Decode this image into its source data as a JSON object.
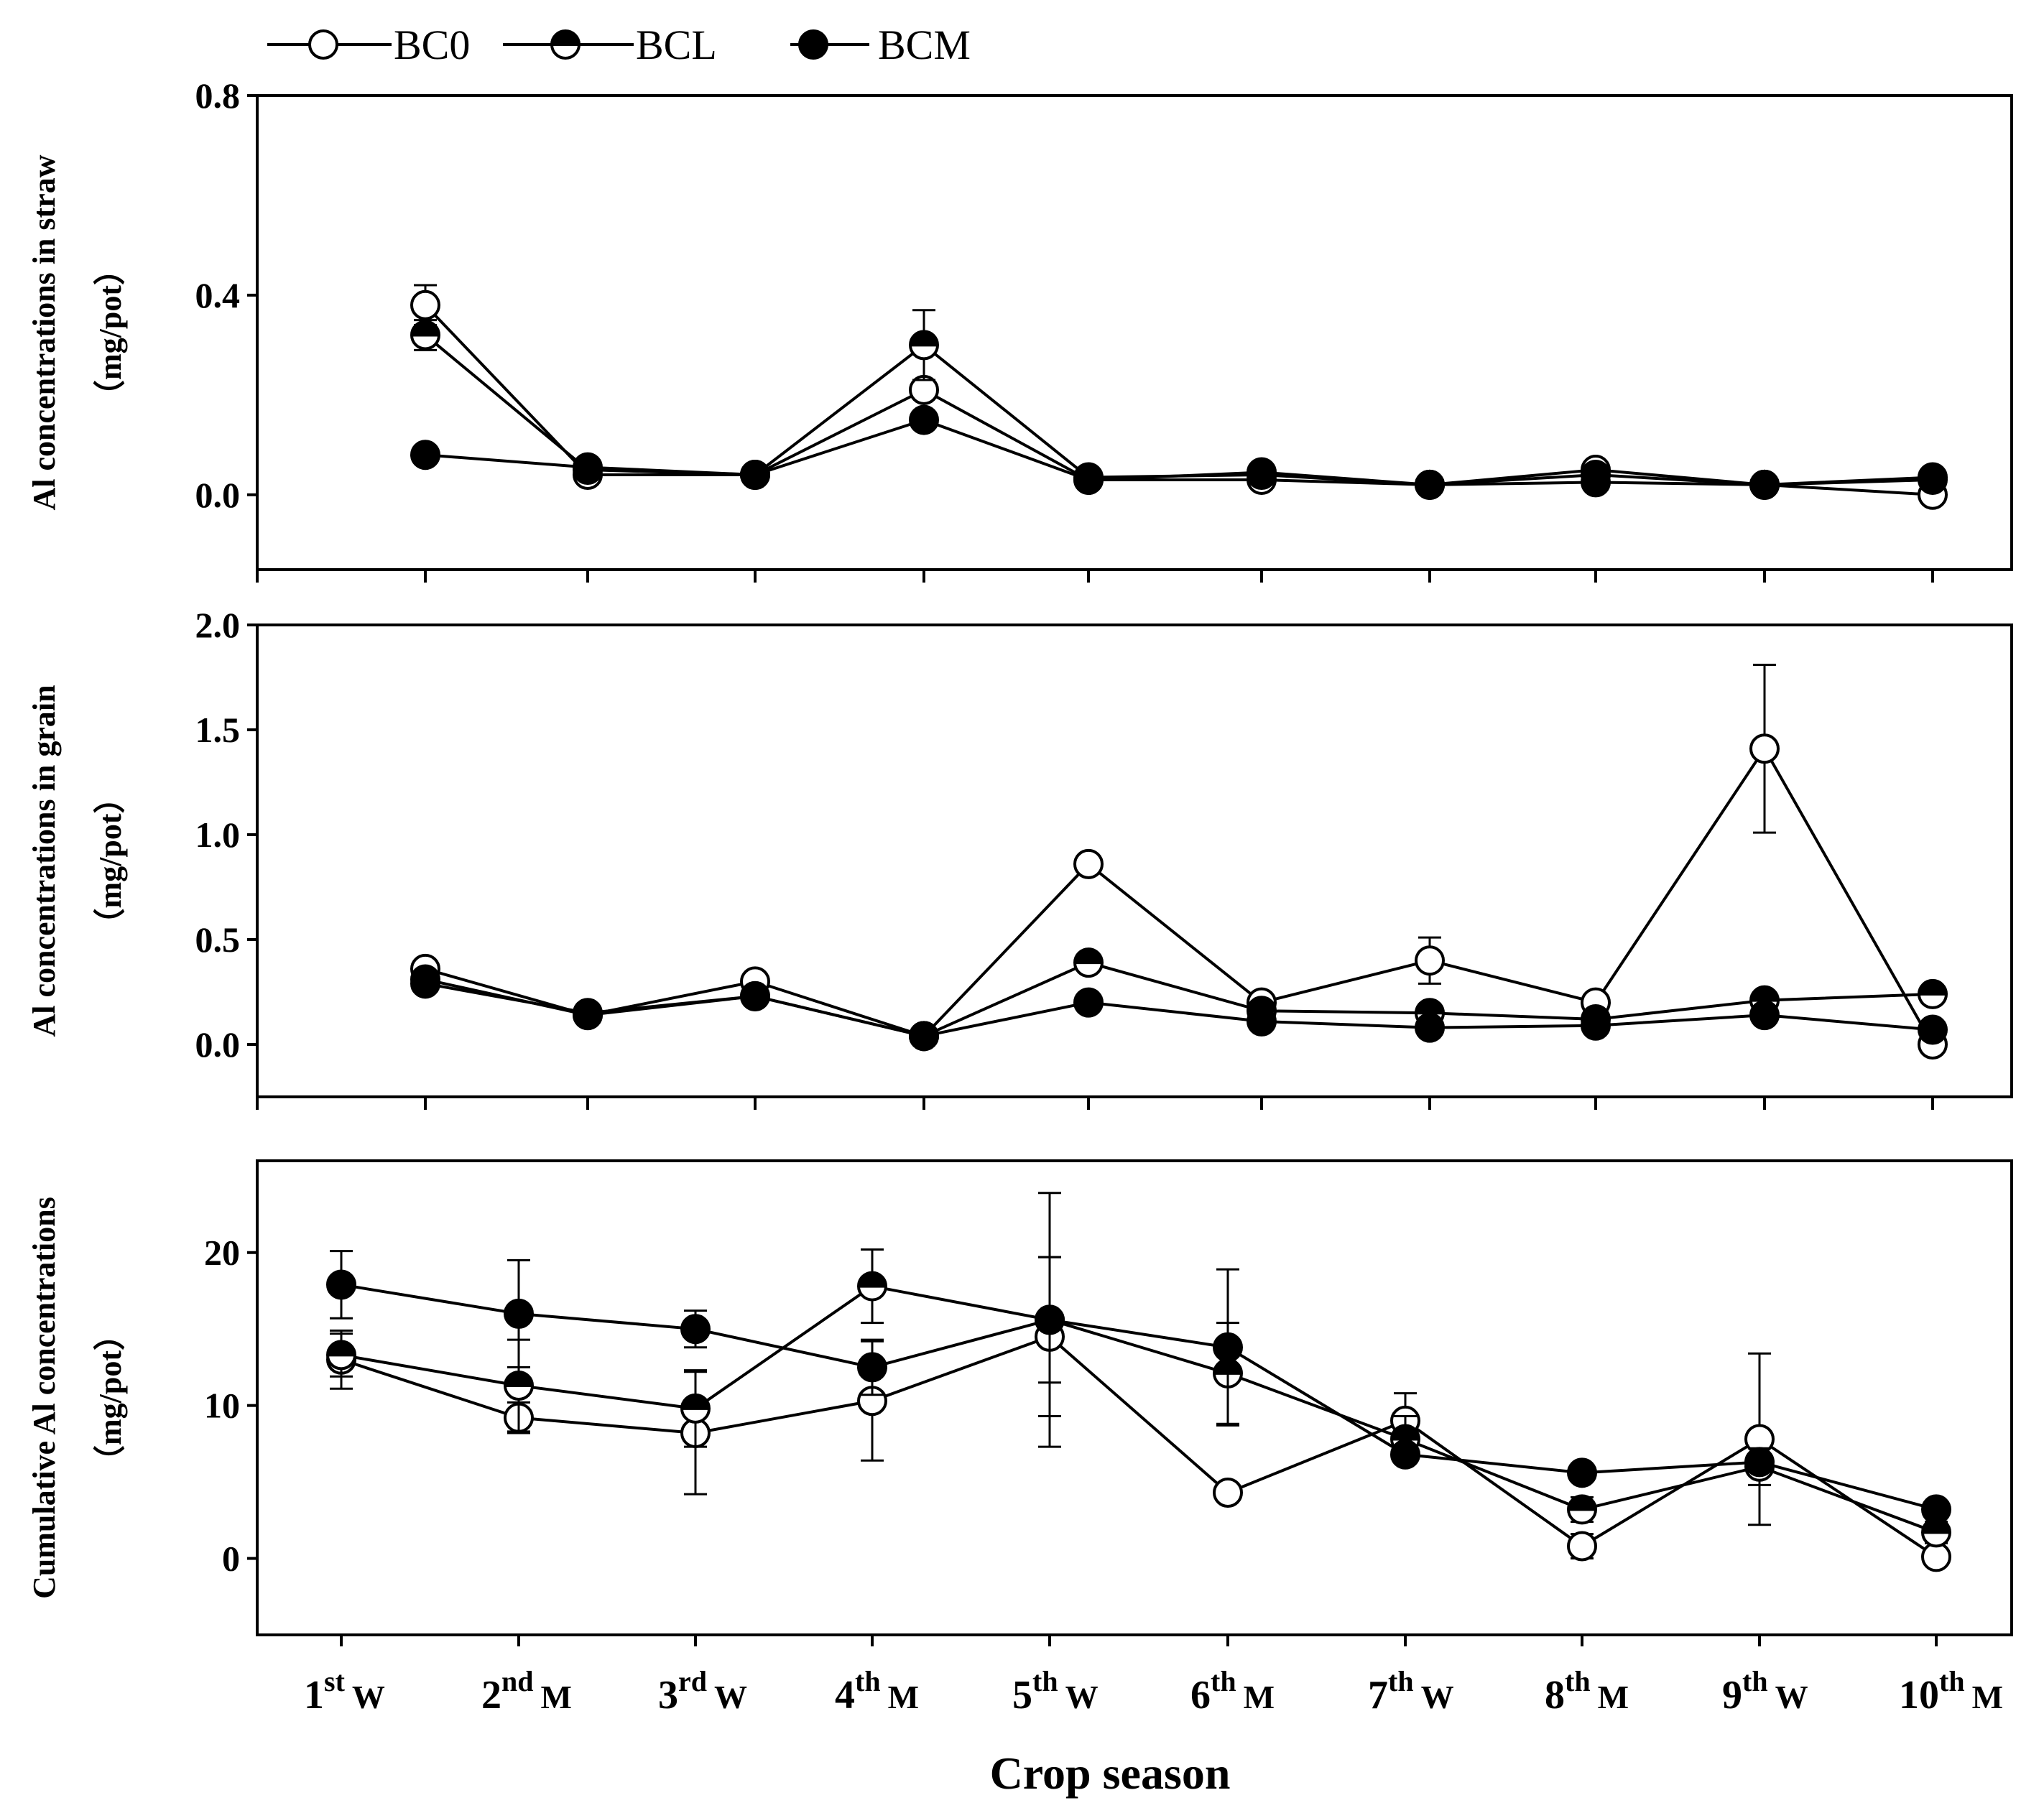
{
  "chart_data": {
    "type": "line",
    "categories": [
      {
        "num": "1",
        "sup": "st",
        "suffix": "W"
      },
      {
        "num": "2",
        "sup": "nd",
        "suffix": "M"
      },
      {
        "num": "3",
        "sup": "rd",
        "suffix": "W"
      },
      {
        "num": "4",
        "sup": "th",
        "suffix": "M"
      },
      {
        "num": "5",
        "sup": "th",
        "suffix": "W"
      },
      {
        "num": "6",
        "sup": "th",
        "suffix": "M"
      },
      {
        "num": "7",
        "sup": "th",
        "suffix": "W"
      },
      {
        "num": "8",
        "sup": "th",
        "suffix": "M"
      },
      {
        "num": "9",
        "sup": "th",
        "suffix": "W"
      },
      {
        "num": "10",
        "sup": "th",
        "suffix": "M"
      }
    ],
    "xlabel": "Crop season",
    "legend": {
      "position": "top-left",
      "entries": [
        {
          "name": "BC0",
          "marker": "open"
        },
        {
          "name": "BCL",
          "marker": "half"
        },
        {
          "name": "BCM",
          "marker": "filled"
        }
      ]
    },
    "panels": [
      {
        "id": "straw",
        "ylabel_line1": "Al concentrations in straw",
        "ylabel_line2": "（mg/pot）",
        "ylim": [
          -0.15,
          0.8
        ],
        "yticks": [
          0.0,
          0.4,
          0.8
        ],
        "ytick_labels": [
          "0.0",
          "0.4",
          "0.8"
        ],
        "series": [
          {
            "name": "BC0",
            "values": [
              0.38,
              0.04,
              0.04,
              0.21,
              0.03,
              0.03,
              0.02,
              0.05,
              0.02,
              0.0
            ],
            "errors": [
              0.04,
              0.0,
              0.0,
              0.0,
              0.0,
              0.0,
              0.0,
              0.0,
              0.0,
              0.0
            ]
          },
          {
            "name": "BCL",
            "values": [
              0.32,
              0.05,
              0.04,
              0.3,
              0.035,
              0.04,
              0.02,
              0.04,
              0.02,
              0.03
            ],
            "errors": [
              0.03,
              0.0,
              0.0,
              0.07,
              0.0,
              0.0,
              0.0,
              0.0,
              0.0,
              0.0
            ]
          },
          {
            "name": "BCM",
            "values": [
              0.08,
              0.055,
              0.04,
              0.15,
              0.03,
              0.045,
              0.02,
              0.025,
              0.02,
              0.035
            ],
            "errors": [
              0.0,
              0.0,
              0.0,
              0.0,
              0.0,
              0.0,
              0.0,
              0.0,
              0.0,
              0.0
            ]
          }
        ]
      },
      {
        "id": "grain",
        "ylabel_line1": "Al concentrations in grain",
        "ylabel_line2": "（mg/pot）",
        "ylim": [
          -0.25,
          2.0
        ],
        "yticks": [
          0.0,
          0.5,
          1.0,
          1.5,
          2.0
        ],
        "ytick_labels": [
          "0.0",
          "0.5",
          "1.0",
          "1.5",
          "2.0"
        ],
        "series": [
          {
            "name": "BC0",
            "values": [
              0.36,
              0.14,
              0.3,
              0.04,
              0.86,
              0.2,
              0.4,
              0.2,
              1.41,
              0.0
            ],
            "errors": [
              0.0,
              0.0,
              0.0,
              0.0,
              0.0,
              0.0,
              0.11,
              0.0,
              0.4,
              0.0
            ]
          },
          {
            "name": "BCL",
            "values": [
              0.31,
              0.14,
              0.23,
              0.04,
              0.39,
              0.16,
              0.15,
              0.12,
              0.21,
              0.24
            ],
            "errors": [
              0.0,
              0.0,
              0.0,
              0.0,
              0.0,
              0.0,
              0.0,
              0.0,
              0.0,
              0.0
            ]
          },
          {
            "name": "BCM",
            "values": [
              0.29,
              0.15,
              0.23,
              0.04,
              0.2,
              0.11,
              0.08,
              0.09,
              0.14,
              0.07
            ],
            "errors": [
              0.0,
              0.0,
              0.0,
              0.0,
              0.0,
              0.0,
              0.0,
              0.0,
              0.0,
              0.0
            ]
          }
        ]
      },
      {
        "id": "cumulative",
        "ylabel_line1": "Cumulative Al concentrations",
        "ylabel_line2": "（mg/pot）",
        "ylim": [
          -5,
          26
        ],
        "yticks": [
          0,
          10,
          20
        ],
        "ytick_labels": [
          "0",
          "10",
          "20"
        ],
        "series": [
          {
            "name": "BC0",
            "values": [
              13.0,
              9.2,
              8.2,
              10.3,
              14.5,
              4.3,
              9.0,
              0.8,
              7.8,
              0.1
            ],
            "errors": [
              1.9,
              1.0,
              4.0,
              3.9,
              5.2,
              0.0,
              1.8,
              0.8,
              5.6,
              0.0
            ]
          },
          {
            "name": "BCL",
            "values": [
              13.3,
              11.3,
              9.8,
              17.8,
              15.6,
              12.1,
              7.8,
              3.2,
              6.0,
              1.7
            ],
            "errors": [
              1.4,
              3.0,
              2.5,
              2.4,
              4.1,
              3.3,
              1.5,
              0.8,
              1.2,
              0.7
            ]
          },
          {
            "name": "BCM",
            "values": [
              17.9,
              16.0,
              15.0,
              12.5,
              15.6,
              13.8,
              6.8,
              5.6,
              6.3,
              3.2
            ],
            "errors": [
              2.2,
              3.5,
              1.2,
              1.8,
              8.3,
              5.1,
              0.0,
              0.0,
              0.0,
              0.0
            ]
          }
        ]
      }
    ]
  }
}
